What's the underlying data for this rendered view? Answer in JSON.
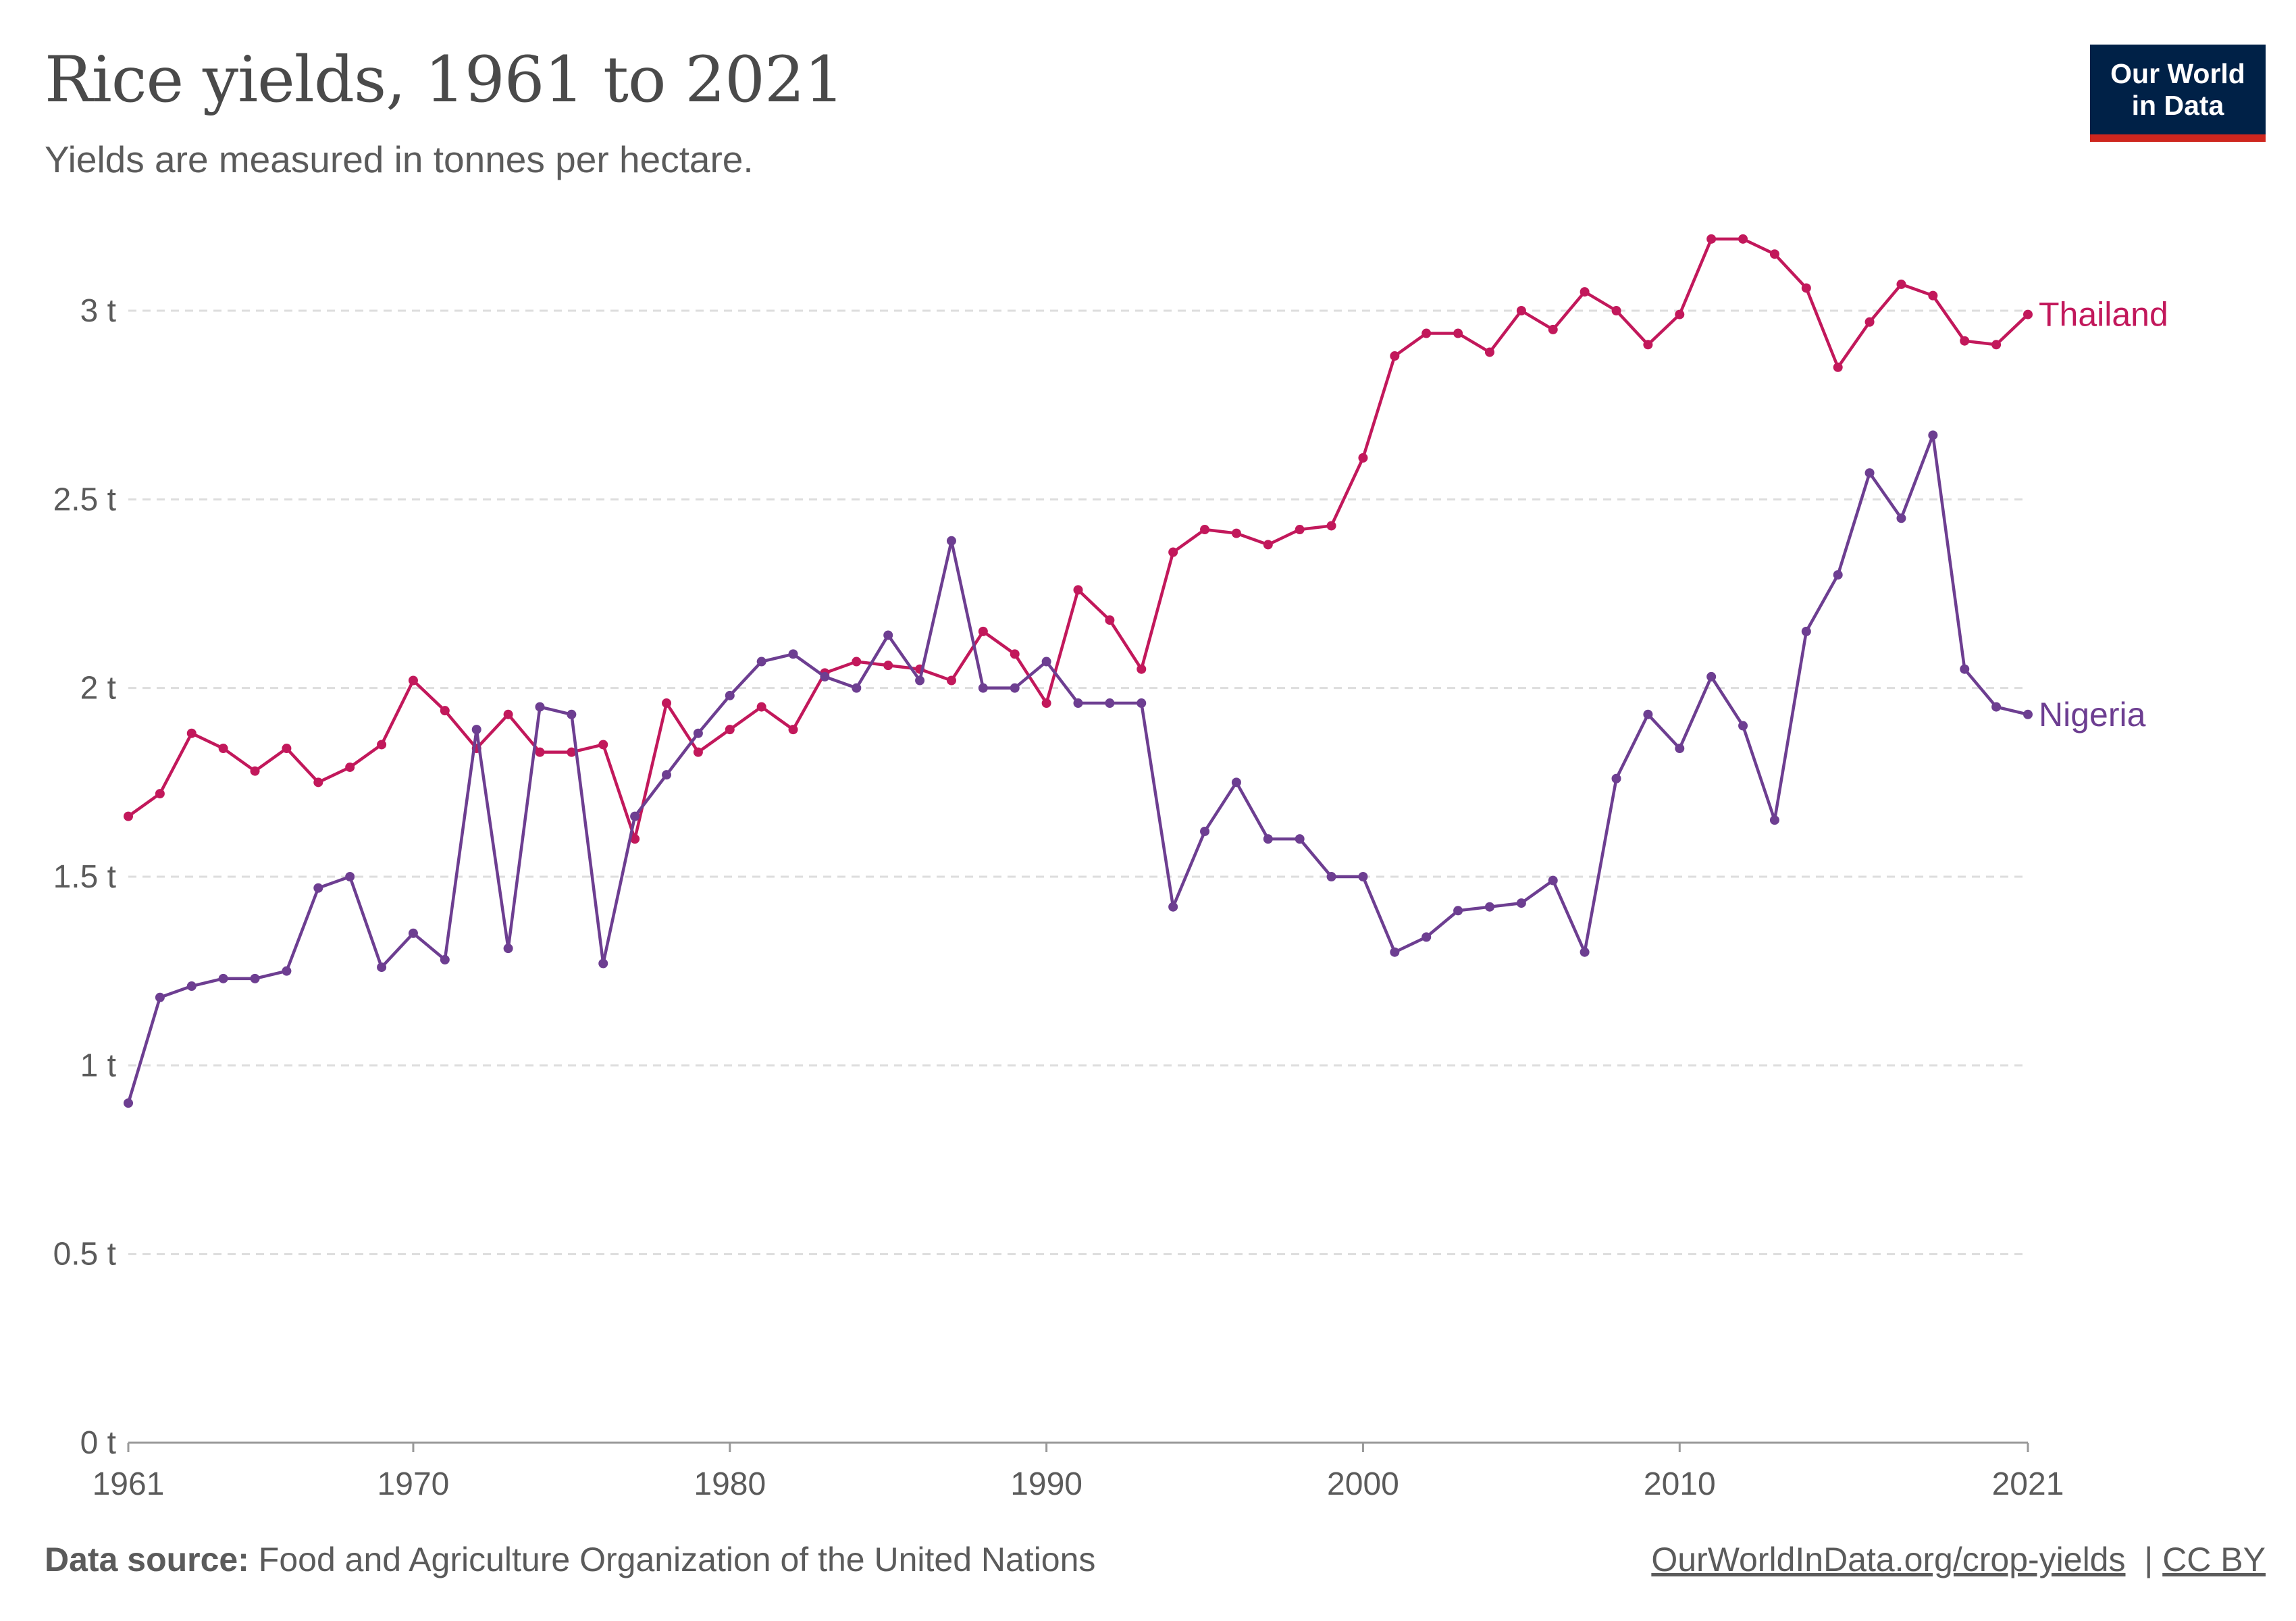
{
  "header": {
    "title": "Rice yields, 1961 to 2021",
    "subtitle": "Yields are measured in tonnes per hectare."
  },
  "logo": {
    "line1": "Our World",
    "line2": "in Data"
  },
  "footer": {
    "source_label": "Data source:",
    "source_text": "Food and Agriculture Organization of the United Nations",
    "url": "OurWorldInData.org/crop-yields",
    "separator": "|",
    "license": "CC BY"
  },
  "colors": {
    "thailand": "#c2185b",
    "nigeria": "#6d3e91",
    "grid": "#dddddd",
    "axis": "#999999"
  },
  "chart_data": {
    "type": "line",
    "title": "Rice yields, 1961 to 2021",
    "subtitle": "Yields are measured in tonnes per hectare.",
    "xlabel": "",
    "ylabel": "",
    "xlim": [
      1961,
      2021
    ],
    "ylim": [
      0,
      3
    ],
    "y_ticks": [
      0,
      0.5,
      1,
      1.5,
      2,
      2.5,
      3
    ],
    "y_tick_labels": [
      "0 t",
      "0.5 t",
      "1 t",
      "1.5 t",
      "2 t",
      "2.5 t",
      "3 t"
    ],
    "x_ticks": [
      1961,
      1970,
      1980,
      1990,
      2000,
      2010,
      2021
    ],
    "x_tick_labels": [
      "1961",
      "1970",
      "1980",
      "1990",
      "2000",
      "2010",
      "2021"
    ],
    "grid": "horizontal dashed",
    "legend": "inline labels at line ends",
    "x": [
      1961,
      1962,
      1963,
      1964,
      1965,
      1966,
      1967,
      1968,
      1969,
      1970,
      1971,
      1972,
      1973,
      1974,
      1975,
      1976,
      1977,
      1978,
      1979,
      1980,
      1981,
      1982,
      1983,
      1984,
      1985,
      1986,
      1987,
      1988,
      1989,
      1990,
      1991,
      1992,
      1993,
      1994,
      1995,
      1996,
      1997,
      1998,
      1999,
      2000,
      2001,
      2002,
      2003,
      2004,
      2005,
      2006,
      2007,
      2008,
      2009,
      2010,
      2011,
      2012,
      2013,
      2014,
      2015,
      2016,
      2017,
      2018,
      2019,
      2020,
      2021
    ],
    "series": [
      {
        "name": "Thailand",
        "values": [
          1.66,
          1.72,
          1.88,
          1.84,
          1.78,
          1.84,
          1.75,
          1.79,
          1.85,
          2.02,
          1.94,
          1.84,
          1.93,
          1.83,
          1.83,
          1.85,
          1.6,
          1.96,
          1.83,
          1.89,
          1.95,
          1.89,
          2.04,
          2.07,
          2.06,
          2.05,
          2.02,
          2.15,
          2.09,
          1.96,
          2.26,
          2.18,
          2.05,
          2.36,
          2.42,
          2.41,
          2.38,
          2.42,
          2.43,
          2.61,
          2.88,
          2.94,
          2.94,
          2.89,
          3.0,
          2.95,
          3.05,
          3.0,
          2.91,
          2.99,
          3.19,
          3.19,
          3.15,
          3.06,
          2.85,
          2.97,
          3.07,
          3.04,
          2.92,
          2.91,
          2.99
        ]
      },
      {
        "name": "Nigeria",
        "values": [
          0.9,
          1.18,
          1.21,
          1.23,
          1.23,
          1.25,
          1.47,
          1.5,
          1.26,
          1.35,
          1.28,
          1.89,
          1.31,
          1.95,
          1.93,
          1.27,
          1.66,
          1.77,
          1.88,
          1.98,
          2.07,
          2.09,
          2.03,
          2.0,
          2.14,
          2.02,
          2.39,
          2.0,
          2.0,
          2.07,
          1.96,
          1.96,
          1.96,
          1.42,
          1.62,
          1.75,
          1.6,
          1.6,
          1.5,
          1.5,
          1.3,
          1.34,
          1.41,
          1.42,
          1.43,
          1.49,
          1.3,
          1.76,
          1.93,
          1.84,
          2.03,
          1.9,
          1.65,
          2.15,
          2.3,
          2.57,
          2.45,
          2.67,
          2.05,
          1.95,
          1.93
        ]
      }
    ]
  }
}
